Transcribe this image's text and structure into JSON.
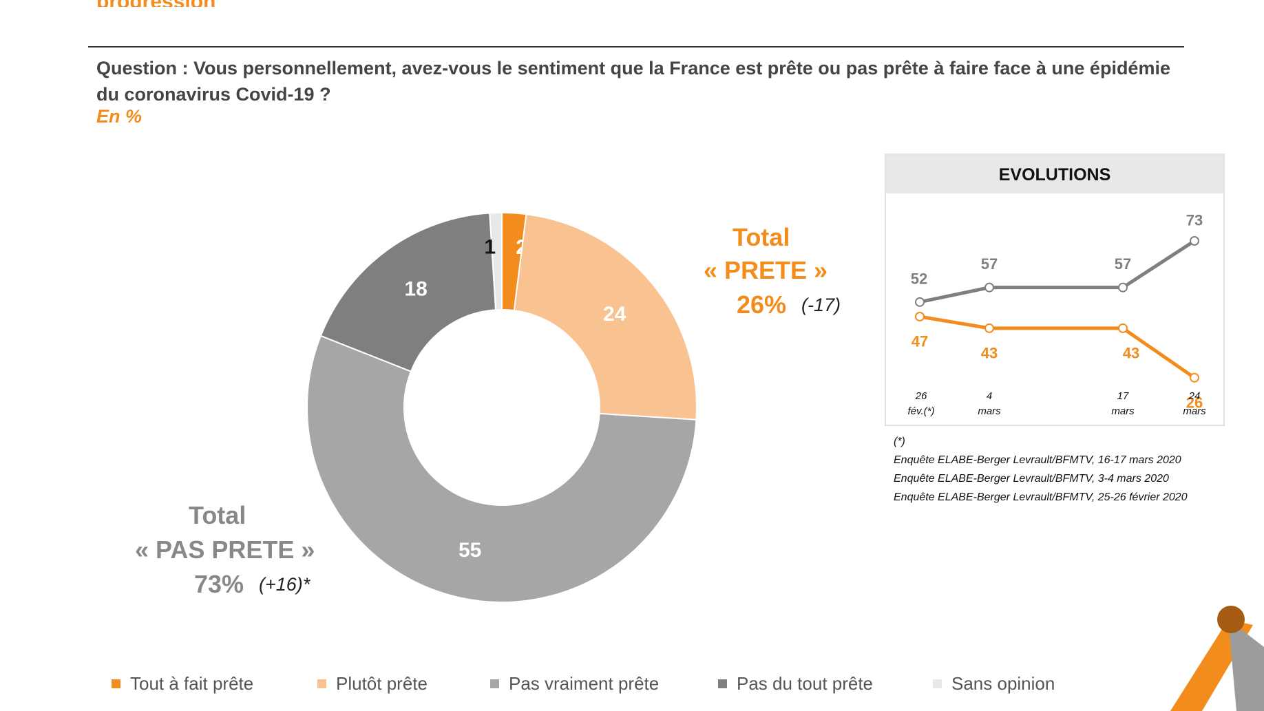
{
  "header": {
    "top_cut_text": "progression",
    "question": "Question : Vous personnellement, avez-vous le sentiment que la France est prête ou pas prête à faire face à une épidémie du coronavirus Covid-19 ?",
    "unit": "En %"
  },
  "totals": {
    "prete": {
      "line1": "Total",
      "line2": "« PRETE »",
      "value": "26%",
      "change": "(-17)"
    },
    "pas_prete": {
      "line1": "Total",
      "line2": "« PAS PRETE »",
      "value": "73%",
      "change": "(+16)*"
    }
  },
  "evolutions": {
    "title": "EVOLUTIONS",
    "dates": [
      {
        "line1": "26",
        "line2": "fév.(*)"
      },
      {
        "line1": "4",
        "line2": "mars"
      },
      {
        "line1": "17",
        "line2": "mars"
      },
      {
        "line1": "24",
        "line2": "mars"
      }
    ]
  },
  "notes": {
    "asterisk": "(*)",
    "sources": [
      "Enquête ELABE-Berger Levrault/BFMTV, 16-17 mars 2020",
      "Enquête ELABE-Berger Levrault/BFMTV, 3-4 mars 2020",
      "Enquête ELABE-Berger Levrault/BFMTV, 25-26 février 2020"
    ]
  },
  "colors": {
    "tout_a_fait": "#f28c1c",
    "plutot": "#f8c291",
    "pas_vraiment": "#a6a6a6",
    "pas_du_tout": "#7f7f7f",
    "sans_opinion": "#e8e8e8",
    "evo_orange": "#f28c1c",
    "evo_gray": "#7f7f7f"
  },
  "chart_data": [
    {
      "type": "pie",
      "donut": true,
      "categories": [
        "Tout à fait prête",
        "Plutôt prête",
        "Pas vraiment prête",
        "Pas du tout prête",
        "Sans opinion"
      ],
      "values": [
        2,
        24,
        55,
        18,
        1
      ],
      "legend_position": "bottom"
    },
    {
      "type": "line",
      "title": "EVOLUTIONS",
      "x": [
        "26 fév.(*)",
        "4 mars",
        "17 mars",
        "24 mars"
      ],
      "series": [
        {
          "values": [
            52,
            57,
            57,
            73
          ],
          "color": "#7f7f7f"
        },
        {
          "values": [
            47,
            43,
            43,
            26
          ],
          "color": "#f28c1c"
        }
      ]
    }
  ]
}
